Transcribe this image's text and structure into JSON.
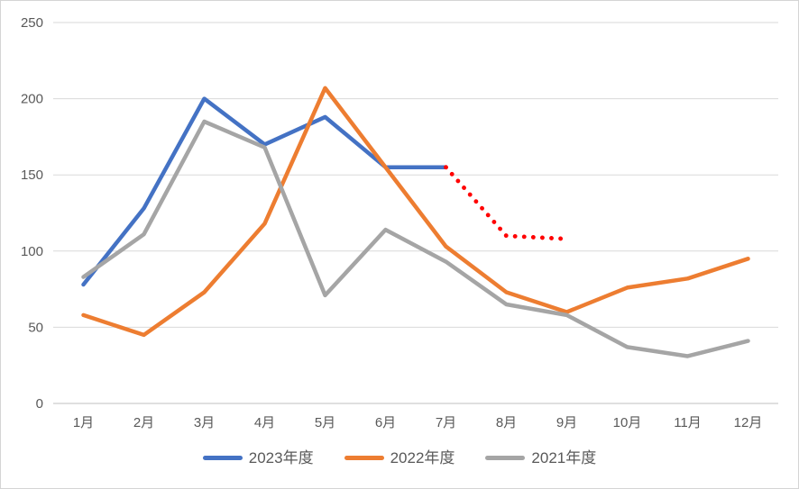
{
  "chart_data": {
    "type": "line",
    "title": "",
    "categories": [
      "1月",
      "2月",
      "3月",
      "4月",
      "5月",
      "6月",
      "7月",
      "8月",
      "9月",
      "10月",
      "11月",
      "12月"
    ],
    "yticks": [
      0,
      50,
      100,
      150,
      200,
      250
    ],
    "ylim": [
      0,
      250
    ],
    "grid": true,
    "legend_position": "bottom",
    "series": [
      {
        "name": "2023年度",
        "color": "#4472C4",
        "style": "solid",
        "in_legend": true,
        "values": [
          78,
          128,
          200,
          170,
          188,
          155,
          155,
          null,
          null,
          null,
          null,
          null
        ]
      },
      {
        "name": "2022年度",
        "color": "#ED7D31",
        "style": "solid",
        "in_legend": true,
        "values": [
          58,
          45,
          73,
          118,
          207,
          155,
          103,
          73,
          60,
          76,
          82,
          95
        ]
      },
      {
        "name": "2021年度",
        "color": "#A5A5A5",
        "style": "solid",
        "in_legend": true,
        "values": [
          83,
          111,
          185,
          168,
          71,
          114,
          93,
          65,
          58,
          37,
          31,
          41
        ]
      },
      {
        "name": "red-dotted-forecast",
        "color": "#FF0000",
        "style": "dotted",
        "in_legend": false,
        "values": [
          null,
          null,
          null,
          null,
          null,
          null,
          155,
          110,
          108,
          null,
          null,
          null
        ]
      }
    ]
  },
  "colors": {
    "gridline": "#D9D9D9",
    "axis_line": "#BFBFBF",
    "tick_label": "#595959",
    "background": "#FFFFFF",
    "border": "#D4D4D4"
  }
}
